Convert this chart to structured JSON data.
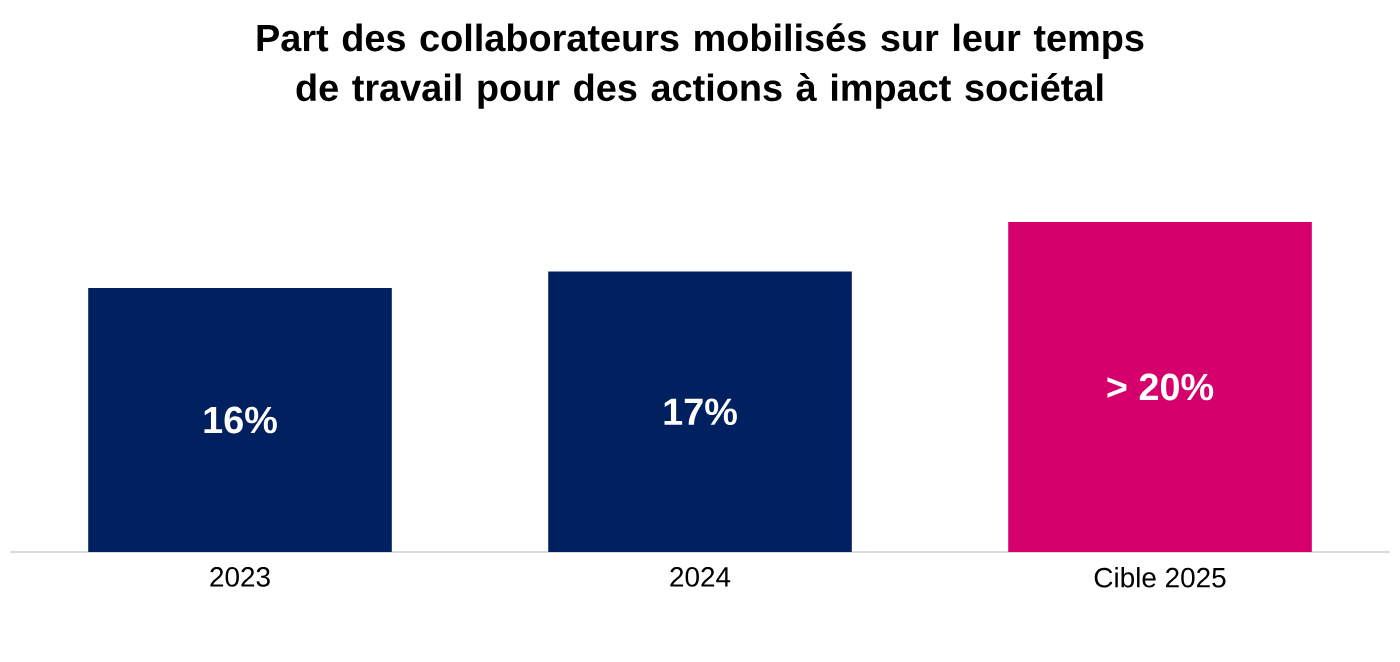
{
  "chart_data": {
    "type": "bar",
    "title": "Part des collaborateurs mobilisés sur leur temps de travail pour des actions à impact sociétal",
    "categories": [
      "2023",
      "2024",
      "Cible 2025"
    ],
    "values": [
      16,
      17,
      20
    ],
    "colors": [
      "#002060",
      "#002060",
      "#d6006c"
    ],
    "value_labels": [
      "16%",
      "17%",
      "> 20%"
    ]
  }
}
